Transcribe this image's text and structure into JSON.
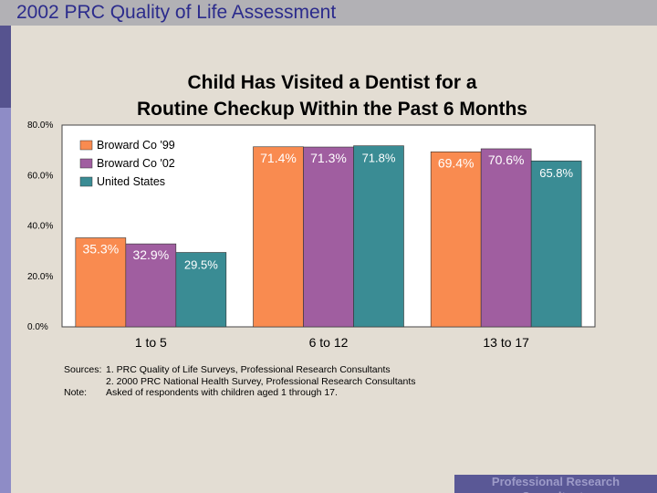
{
  "header": {
    "title": "2002 PRC Quality of Life Assessment"
  },
  "chart_data": {
    "type": "bar",
    "title_line1": "Child Has Visited a Dentist for a",
    "title_line2": "Routine Checkup Within the Past 6 Months",
    "categories": [
      "1 to 5",
      "6 to 12",
      "13 to 17"
    ],
    "series": [
      {
        "name": "Broward Co '99",
        "color": "#f98b50",
        "values": [
          35.3,
          71.4,
          69.4
        ],
        "labels": [
          "35.3%",
          "71.4%",
          "69.4%"
        ]
      },
      {
        "name": "Broward Co '02",
        "color": "#a05ea0",
        "values": [
          32.9,
          71.3,
          70.6
        ],
        "labels": [
          "32.9%",
          "71.3%",
          "70.6%"
        ]
      },
      {
        "name": "United States",
        "color": "#3a8c94",
        "values": [
          29.5,
          71.8,
          65.8
        ],
        "labels": [
          "29.5%",
          "71.8%",
          "65.8%"
        ]
      }
    ],
    "yticks": [
      0,
      20,
      40,
      60,
      80
    ],
    "ytick_labels": [
      "0.0%",
      "20.0%",
      "40.0%",
      "60.0%",
      "80.0%"
    ],
    "ylim": [
      0,
      80
    ],
    "legend_position": "top-left",
    "xlabel": "",
    "ylabel": ""
  },
  "notes": {
    "sources_label": "Sources:",
    "source1": "1. PRC Quality of Life Surveys, Professional Research Consultants",
    "source2": "2. 2000 PRC National Health Survey, Professional Research Consultants",
    "note_label": "Note:",
    "note_text": "Asked of respondents with children aged 1 through 17."
  },
  "footer": {
    "text": "Professional Research Consultants"
  }
}
